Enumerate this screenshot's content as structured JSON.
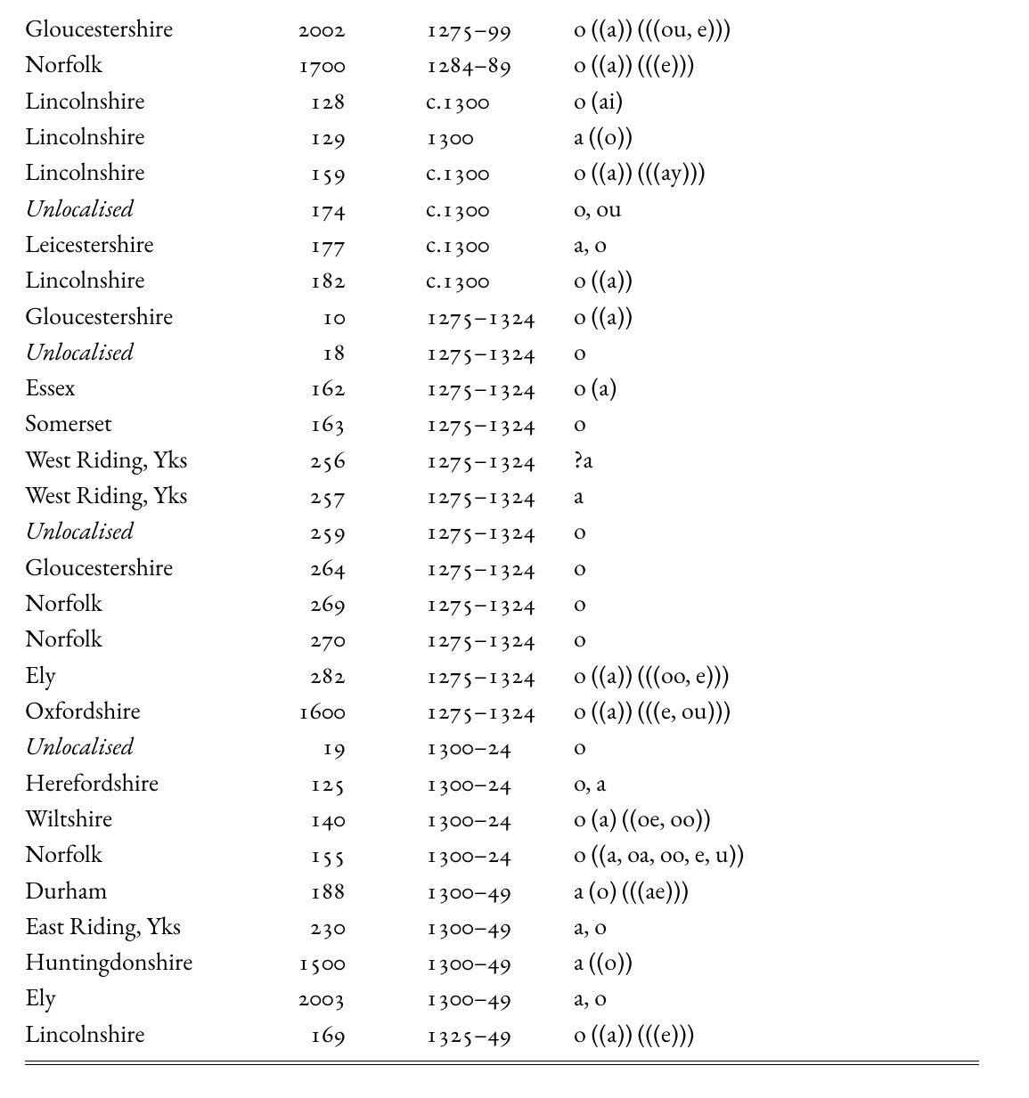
{
  "table": {
    "type": "table",
    "columns": [
      "county",
      "number",
      "date",
      "value"
    ],
    "col_align": [
      "left",
      "right",
      "left",
      "left"
    ],
    "font_family": "Garamond serif",
    "font_size_pt": 21,
    "text_color": "#000000",
    "background_color": "#ffffff",
    "rule_color": "#000000",
    "rows": [
      {
        "county": "Gloucestershire",
        "italic": false,
        "num": "2002",
        "date": "1275–99",
        "val": "o ((a)) (((ou, e)))"
      },
      {
        "county": "Norfolk",
        "italic": false,
        "num": "1700",
        "date": "1284–89",
        "val": "o ((a)) (((e)))"
      },
      {
        "county": "Lincolnshire",
        "italic": false,
        "num": "128",
        "date": "c.1300",
        "val": "o (ai)"
      },
      {
        "county": "Lincolnshire",
        "italic": false,
        "num": "129",
        "date": "1300",
        "val": "a ((o))"
      },
      {
        "county": "Lincolnshire",
        "italic": false,
        "num": "159",
        "date": "c.1300",
        "val": "o ((a)) (((ay)))"
      },
      {
        "county": "Unlocalised",
        "italic": true,
        "num": "174",
        "date": "c.1300",
        "val": "o, ou"
      },
      {
        "county": "Leicestershire",
        "italic": false,
        "num": "177",
        "date": "c.1300",
        "val": "a, o"
      },
      {
        "county": "Lincolnshire",
        "italic": false,
        "num": "182",
        "date": "c.1300",
        "val": "o ((a))"
      },
      {
        "county": "Gloucestershire",
        "italic": false,
        "num": "10",
        "date": "1275–1324",
        "val": "o ((a))"
      },
      {
        "county": "Unlocalised",
        "italic": true,
        "num": "18",
        "date": "1275–1324",
        "val": "o"
      },
      {
        "county": "Essex",
        "italic": false,
        "num": "162",
        "date": "1275–1324",
        "val": "o (a)"
      },
      {
        "county": "Somerset",
        "italic": false,
        "num": "163",
        "date": "1275–1324",
        "val": "o"
      },
      {
        "county": "West Riding, Yks",
        "italic": false,
        "num": "256",
        "date": "1275–1324",
        "val": "?a"
      },
      {
        "county": "West Riding, Yks",
        "italic": false,
        "num": "257",
        "date": "1275–1324",
        "val": "a"
      },
      {
        "county": "Unlocalised",
        "italic": true,
        "num": "259",
        "date": "1275–1324",
        "val": "o"
      },
      {
        "county": "Gloucestershire",
        "italic": false,
        "num": "264",
        "date": "1275–1324",
        "val": "o"
      },
      {
        "county": "Norfolk",
        "italic": false,
        "num": "269",
        "date": "1275–1324",
        "val": "o"
      },
      {
        "county": "Norfolk",
        "italic": false,
        "num": "270",
        "date": "1275–1324",
        "val": "o"
      },
      {
        "county": "Ely",
        "italic": false,
        "num": "282",
        "date": "1275–1324",
        "val": "o ((a)) (((oo, e)))"
      },
      {
        "county": "Oxfordshire",
        "italic": false,
        "num": "1600",
        "date": "1275–1324",
        "val": "o ((a)) (((e, ou)))"
      },
      {
        "county": "Unlocalised",
        "italic": true,
        "num": "19",
        "date": "1300–24",
        "val": "o"
      },
      {
        "county": "Herefordshire",
        "italic": false,
        "num": "125",
        "date": "1300–24",
        "val": "o, a"
      },
      {
        "county": "Wiltshire",
        "italic": false,
        "num": "140",
        "date": "1300–24",
        "val": "o (a) ((oe, oo))"
      },
      {
        "county": "Norfolk",
        "italic": false,
        "num": "155",
        "date": "1300–24",
        "val": "o ((a, oa, oo, e, u))"
      },
      {
        "county": "Durham",
        "italic": false,
        "num": "188",
        "date": "1300–49",
        "val": "a (o) (((ae)))"
      },
      {
        "county": "East Riding, Yks",
        "italic": false,
        "num": "230",
        "date": "1300–49",
        "val": "a, o"
      },
      {
        "county": "Huntingdonshire",
        "italic": false,
        "num": "1500",
        "date": "1300–49",
        "val": "a ((o))"
      },
      {
        "county": "Ely",
        "italic": false,
        "num": "2003",
        "date": "1300–49",
        "val": "a, o"
      },
      {
        "county": "Lincolnshire",
        "italic": false,
        "num": "169",
        "date": "1325–49",
        "val": "o ((a)) (((e)))"
      }
    ]
  }
}
